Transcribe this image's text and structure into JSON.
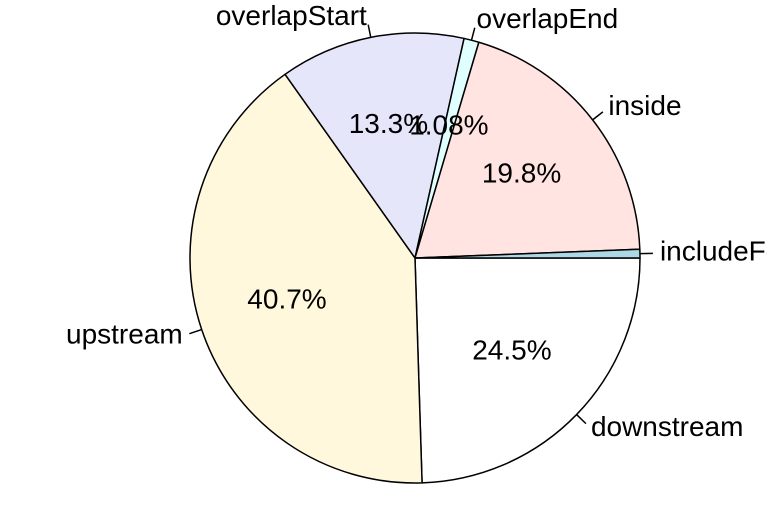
{
  "chart_data": {
    "type": "pie",
    "start_angle_deg": 0,
    "direction": "clockwise-from-east",
    "slices": [
      {
        "label": "downstream",
        "value": 24.5,
        "pct_label": "24.5%",
        "color": "#ffffff"
      },
      {
        "label": "upstream",
        "value": 40.7,
        "pct_label": "40.7%",
        "color": "#fff8dc"
      },
      {
        "label": "overlapStart",
        "value": 13.3,
        "pct_label": "13.3%",
        "color": "#e6e6fa"
      },
      {
        "label": "overlapEnd",
        "value": 1.08,
        "pct_label": "1.08%",
        "color": "#e0ffff"
      },
      {
        "label": "inside",
        "value": 19.8,
        "pct_label": "19.8%",
        "color": "#ffe4e1"
      },
      {
        "label": "includeFeature",
        "value": 0.62,
        "pct_label": "",
        "color": "#add8e6"
      }
    ]
  }
}
